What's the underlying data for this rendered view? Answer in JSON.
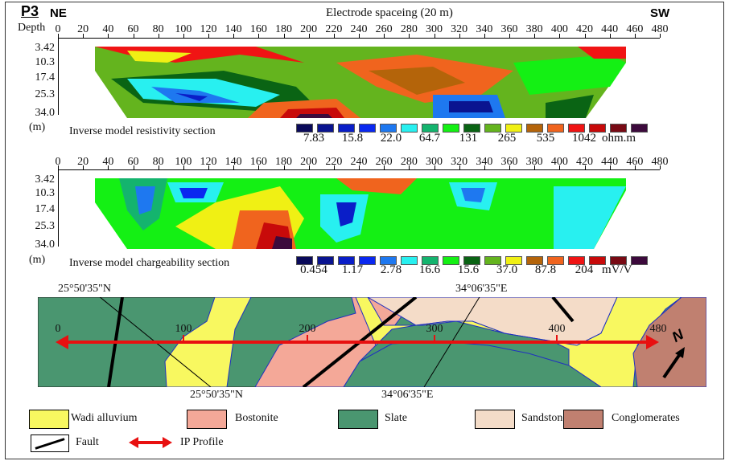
{
  "panel_label": "P3",
  "direction_left": "NE",
  "direction_right": "SW",
  "axis_title": "Electrode spaceing (20 m)",
  "depth_label": "Depth",
  "unit_m": "(m)",
  "x_ticks": [
    "0",
    "20",
    "40",
    "60",
    "80",
    "100",
    "120",
    "140",
    "160",
    "180",
    "200",
    "220",
    "240",
    "260",
    "280",
    "300",
    "320",
    "340",
    "360",
    "380",
    "400",
    "420",
    "440",
    "460",
    "480"
  ],
  "depth_ticks": [
    "3.42",
    "10.3",
    "17.4",
    "25.3",
    "34.0"
  ],
  "resistivity": {
    "title": "Inverse model resistivity section",
    "unit": "ohm.m",
    "labels": [
      "7.83",
      "15.8",
      "22.0",
      "64.7",
      "131",
      "265",
      "535",
      "1042"
    ]
  },
  "chargeability": {
    "title": "Inverse model chargeability section",
    "unit": "mV/V",
    "labels": [
      "0.454",
      "1.17",
      "2.78",
      "16.6",
      "15.6",
      "37.0",
      "87.8",
      "204"
    ]
  },
  "palette": [
    "#0a0a5a",
    "#0a1490",
    "#0a1ec8",
    "#0a28f0",
    "#1e78f0",
    "#28f0f0",
    "#14b46e",
    "#14f014",
    "#0a6414",
    "#64b41e",
    "#f0f014",
    "#b4640a",
    "#f0641e",
    "#f01414",
    "#c80a0a",
    "#780a14",
    "#3c0a3c"
  ],
  "map": {
    "coords": {
      "lat_top": "25°50'35\"N",
      "lat_bottom": "25°50'35\"N",
      "lon_top": "34°06'35\"E",
      "lon_bottom": "34°06'35\"E"
    },
    "profile_ticks": [
      "0",
      "100",
      "200",
      "300",
      "400",
      "480"
    ],
    "north": "N"
  },
  "legend": {
    "items": [
      {
        "label": "Wadi alluvium",
        "color": "#f8f860"
      },
      {
        "label": "Bostonite",
        "color": "#f4a898"
      },
      {
        "label": "Slate",
        "color": "#4a9670"
      },
      {
        "label": "Sandstone",
        "color": "#f4dcc8"
      },
      {
        "label": "Conglomerates",
        "color": "#c08070"
      }
    ],
    "fault": "Fault",
    "profile": "IP Profile"
  }
}
